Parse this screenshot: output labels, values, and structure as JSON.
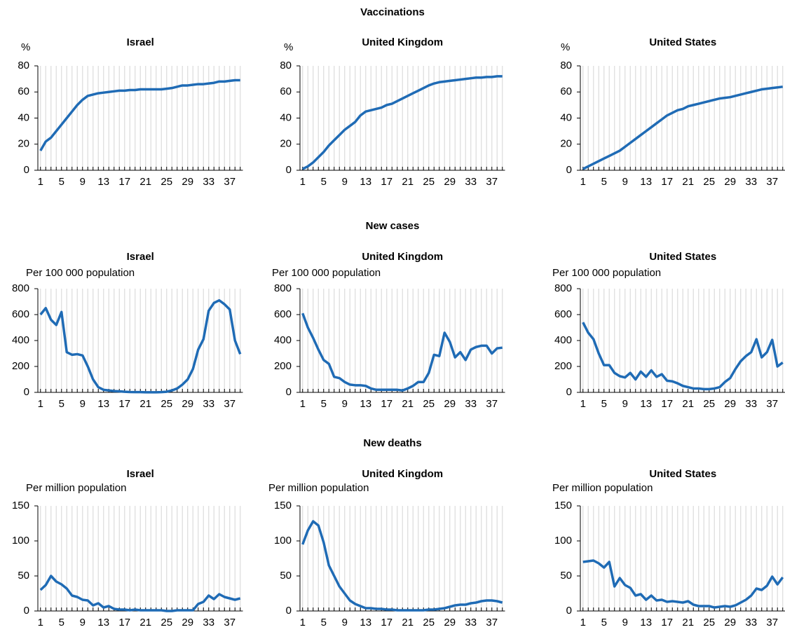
{
  "sections": [
    "Vaccinations",
    "New cases",
    "New deaths"
  ],
  "chart_data": [
    {
      "type": "line",
      "title": "Israel",
      "ylabel": "%",
      "x": [
        1,
        2,
        3,
        4,
        5,
        6,
        7,
        8,
        9,
        10,
        11,
        12,
        13,
        14,
        15,
        16,
        17,
        18,
        19,
        20,
        21,
        22,
        23,
        24,
        25,
        26,
        27,
        28,
        29,
        30,
        31,
        32,
        33,
        34,
        35,
        36,
        37,
        38,
        39
      ],
      "xlim": [
        0.5,
        39.5
      ],
      "xticks": [
        1,
        5,
        9,
        13,
        17,
        21,
        25,
        29,
        33,
        37
      ],
      "ylim": [
        0,
        80
      ],
      "yticks": [
        0,
        20,
        40,
        60,
        80
      ],
      "grid": true,
      "series": [
        {
          "color": "#1f6bb5",
          "values": [
            15,
            22,
            25,
            30,
            35,
            40,
            45,
            50,
            54,
            57,
            58,
            59,
            59.5,
            60,
            60.5,
            61,
            61,
            61.5,
            61.5,
            62,
            62,
            62,
            62,
            62,
            62.5,
            63,
            64,
            65,
            65,
            65.5,
            66,
            66,
            66.5,
            67,
            68,
            68,
            68.5,
            69,
            69
          ]
        }
      ]
    },
    {
      "type": "line",
      "title": "United Kingdom",
      "ylabel": "%",
      "x": [
        1,
        2,
        3,
        4,
        5,
        6,
        7,
        8,
        9,
        10,
        11,
        12,
        13,
        14,
        15,
        16,
        17,
        18,
        19,
        20,
        21,
        22,
        23,
        24,
        25,
        26,
        27,
        28,
        29,
        30,
        31,
        32,
        33,
        34,
        35,
        36,
        37,
        38,
        39
      ],
      "xlim": [
        0.5,
        39.5
      ],
      "xticks": [
        1,
        5,
        9,
        13,
        17,
        21,
        25,
        29,
        33,
        37
      ],
      "ylim": [
        0,
        80
      ],
      "yticks": [
        0,
        20,
        40,
        60,
        80
      ],
      "grid": true,
      "series": [
        {
          "color": "#1f6bb5",
          "values": [
            1,
            3,
            6,
            10,
            14,
            19,
            23,
            27,
            31,
            34,
            37,
            42,
            45,
            46,
            47,
            48,
            50,
            51,
            53,
            55,
            57,
            59,
            61,
            63,
            65,
            66.5,
            67.5,
            68,
            68.5,
            69,
            69.5,
            70,
            70.5,
            71,
            71,
            71.5,
            71.5,
            72,
            72
          ]
        }
      ]
    },
    {
      "type": "line",
      "title": "United States",
      "ylabel": "%",
      "x": [
        1,
        2,
        3,
        4,
        5,
        6,
        7,
        8,
        9,
        10,
        11,
        12,
        13,
        14,
        15,
        16,
        17,
        18,
        19,
        20,
        21,
        22,
        23,
        24,
        25,
        26,
        27,
        28,
        29,
        30,
        31,
        32,
        33,
        34,
        35,
        36,
        37,
        38,
        39
      ],
      "xlim": [
        0.5,
        39.5
      ],
      "xticks": [
        1,
        5,
        9,
        13,
        17,
        21,
        25,
        29,
        33,
        37
      ],
      "ylim": [
        0,
        80
      ],
      "yticks": [
        0,
        20,
        40,
        60,
        80
      ],
      "grid": true,
      "series": [
        {
          "color": "#1f6bb5",
          "values": [
            1,
            3,
            5,
            7,
            9,
            11,
            13,
            15,
            18,
            21,
            24,
            27,
            30,
            33,
            36,
            39,
            42,
            44,
            46,
            47,
            49,
            50,
            51,
            52,
            53,
            54,
            55,
            55.5,
            56,
            57,
            58,
            59,
            60,
            61,
            62,
            62.5,
            63,
            63.5,
            64
          ]
        }
      ]
    },
    {
      "type": "line",
      "title": "Israel",
      "ylabel": "Per 100 000 population",
      "x": [
        1,
        2,
        3,
        4,
        5,
        6,
        7,
        8,
        9,
        10,
        11,
        12,
        13,
        14,
        15,
        16,
        17,
        18,
        19,
        20,
        21,
        22,
        23,
        24,
        25,
        26,
        27,
        28,
        29,
        30,
        31,
        32,
        33,
        34,
        35,
        36,
        37,
        38,
        39
      ],
      "xlim": [
        0.5,
        39.5
      ],
      "xticks": [
        1,
        5,
        9,
        13,
        17,
        21,
        25,
        29,
        33,
        37
      ],
      "ylim": [
        0,
        800
      ],
      "yticks": [
        0,
        200,
        400,
        600,
        800
      ],
      "grid": true,
      "series": [
        {
          "color": "#1f6bb5",
          "values": [
            600,
            650,
            560,
            520,
            620,
            310,
            290,
            295,
            285,
            200,
            100,
            40,
            20,
            15,
            10,
            8,
            5,
            3,
            2,
            2,
            1,
            1,
            1,
            2,
            5,
            15,
            30,
            60,
            100,
            180,
            330,
            410,
            630,
            690,
            710,
            680,
            640,
            400,
            295
          ]
        }
      ]
    },
    {
      "type": "line",
      "title": "United Kingdom",
      "ylabel": "Per 100 000 population",
      "x": [
        1,
        2,
        3,
        4,
        5,
        6,
        7,
        8,
        9,
        10,
        11,
        12,
        13,
        14,
        15,
        16,
        17,
        18,
        19,
        20,
        21,
        22,
        23,
        24,
        25,
        26,
        27,
        28,
        29,
        30,
        31,
        32,
        33,
        34,
        35,
        36,
        37,
        38,
        39
      ],
      "xlim": [
        0.5,
        39.5
      ],
      "xticks": [
        1,
        5,
        9,
        13,
        17,
        21,
        25,
        29,
        33,
        37
      ],
      "ylim": [
        0,
        800
      ],
      "yticks": [
        0,
        200,
        400,
        600,
        800
      ],
      "grid": true,
      "series": [
        {
          "color": "#1f6bb5",
          "values": [
            610,
            500,
            420,
            330,
            250,
            220,
            120,
            110,
            80,
            60,
            55,
            55,
            50,
            30,
            20,
            20,
            20,
            20,
            20,
            15,
            30,
            50,
            80,
            80,
            150,
            290,
            280,
            460,
            390,
            270,
            310,
            250,
            330,
            350,
            360,
            360,
            300,
            340,
            345
          ]
        }
      ]
    },
    {
      "type": "line",
      "title": "United States",
      "ylabel": "Per 100 000 population",
      "x": [
        1,
        2,
        3,
        4,
        5,
        6,
        7,
        8,
        9,
        10,
        11,
        12,
        13,
        14,
        15,
        16,
        17,
        18,
        19,
        20,
        21,
        22,
        23,
        24,
        25,
        26,
        27,
        28,
        29,
        30,
        31,
        32,
        33,
        34,
        35,
        36,
        37,
        38,
        39
      ],
      "xlim": [
        0.5,
        39.5
      ],
      "xticks": [
        1,
        5,
        9,
        13,
        17,
        21,
        25,
        29,
        33,
        37
      ],
      "ylim": [
        0,
        800
      ],
      "yticks": [
        0,
        200,
        400,
        600,
        800
      ],
      "grid": true,
      "series": [
        {
          "color": "#1f6bb5",
          "values": [
            540,
            460,
            410,
            300,
            210,
            210,
            150,
            125,
            115,
            150,
            100,
            160,
            120,
            170,
            120,
            140,
            90,
            85,
            70,
            50,
            40,
            30,
            30,
            25,
            25,
            30,
            40,
            80,
            110,
            180,
            240,
            280,
            310,
            410,
            270,
            310,
            405,
            200,
            230
          ]
        }
      ]
    },
    {
      "type": "line",
      "title": "Israel",
      "ylabel": "Per million population",
      "x": [
        1,
        2,
        3,
        4,
        5,
        6,
        7,
        8,
        9,
        10,
        11,
        12,
        13,
        14,
        15,
        16,
        17,
        18,
        19,
        20,
        21,
        22,
        23,
        24,
        25,
        26,
        27,
        28,
        29,
        30,
        31,
        32,
        33,
        34,
        35,
        36,
        37,
        38,
        39
      ],
      "xlim": [
        0.5,
        39.5
      ],
      "xticks": [
        1,
        5,
        9,
        13,
        17,
        21,
        25,
        29,
        33,
        37
      ],
      "ylim": [
        0,
        150
      ],
      "yticks": [
        0,
        50,
        100,
        150
      ],
      "grid": true,
      "series": [
        {
          "color": "#1f6bb5",
          "values": [
            30,
            37,
            50,
            42,
            38,
            32,
            22,
            20,
            16,
            15,
            8,
            11,
            5,
            7,
            3,
            2,
            2,
            1,
            2,
            1,
            1,
            1,
            1,
            1,
            0,
            0,
            1,
            1,
            1,
            1,
            10,
            13,
            22,
            17,
            24,
            20,
            18,
            16,
            18
          ]
        }
      ]
    },
    {
      "type": "line",
      "title": "United Kingdom",
      "ylabel": "Per million population",
      "x": [
        1,
        2,
        3,
        4,
        5,
        6,
        7,
        8,
        9,
        10,
        11,
        12,
        13,
        14,
        15,
        16,
        17,
        18,
        19,
        20,
        21,
        22,
        23,
        24,
        25,
        26,
        27,
        28,
        29,
        30,
        31,
        32,
        33,
        34,
        35,
        36,
        37,
        38,
        39
      ],
      "xlim": [
        0.5,
        39.5
      ],
      "xticks": [
        1,
        5,
        9,
        13,
        17,
        21,
        25,
        29,
        33,
        37
      ],
      "ylim": [
        0,
        150
      ],
      "yticks": [
        0,
        50,
        100,
        150
      ],
      "grid": true,
      "series": [
        {
          "color": "#1f6bb5",
          "values": [
            95,
            115,
            128,
            122,
            98,
            65,
            50,
            35,
            25,
            15,
            10,
            7,
            4,
            4,
            3,
            3,
            2,
            2,
            1,
            1,
            1,
            1,
            1,
            1,
            2,
            2,
            3,
            4,
            6,
            8,
            9,
            9,
            11,
            12,
            14,
            15,
            15,
            14,
            12
          ]
        }
      ]
    },
    {
      "type": "line",
      "title": "United States",
      "ylabel": "Per million population",
      "x": [
        1,
        2,
        3,
        4,
        5,
        6,
        7,
        8,
        9,
        10,
        11,
        12,
        13,
        14,
        15,
        16,
        17,
        18,
        19,
        20,
        21,
        22,
        23,
        24,
        25,
        26,
        27,
        28,
        29,
        30,
        31,
        32,
        33,
        34,
        35,
        36,
        37,
        38,
        39
      ],
      "xlim": [
        0.5,
        39.5
      ],
      "xticks": [
        1,
        5,
        9,
        13,
        17,
        21,
        25,
        29,
        33,
        37
      ],
      "ylim": [
        0,
        150
      ],
      "yticks": [
        0,
        50,
        100,
        150
      ],
      "grid": true,
      "series": [
        {
          "color": "#1f6bb5",
          "values": [
            70,
            71,
            72,
            68,
            62,
            70,
            35,
            47,
            37,
            33,
            22,
            24,
            16,
            22,
            15,
            16,
            13,
            14,
            13,
            12,
            14,
            9,
            7,
            7,
            7,
            5,
            6,
            7,
            6,
            8,
            12,
            16,
            22,
            32,
            30,
            36,
            49,
            38,
            48
          ]
        }
      ]
    }
  ]
}
